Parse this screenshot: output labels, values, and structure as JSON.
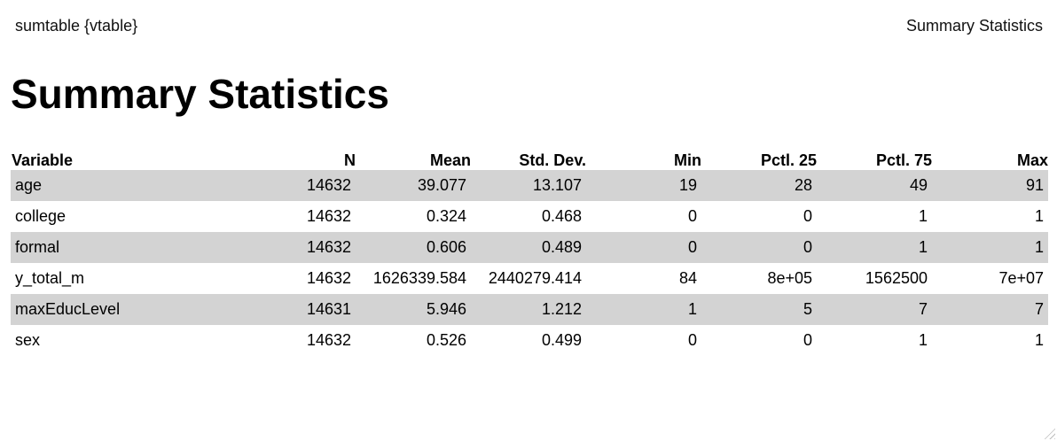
{
  "header": {
    "left": "sumtable {vtable}",
    "right": "Summary Statistics"
  },
  "title": "Summary Statistics",
  "table": {
    "columns": [
      "Variable",
      "N",
      "Mean",
      "Std. Dev.",
      "Min",
      "Pctl. 25",
      "Pctl. 75",
      "Max"
    ],
    "rows": [
      [
        "age",
        "14632",
        "39.077",
        "13.107",
        "19",
        "28",
        "49",
        "91"
      ],
      [
        "college",
        "14632",
        "0.324",
        "0.468",
        "0",
        "0",
        "1",
        "1"
      ],
      [
        "formal",
        "14632",
        "0.606",
        "0.489",
        "0",
        "0",
        "1",
        "1"
      ],
      [
        "y_total_m",
        "14632",
        "1626339.584",
        "2440279.414",
        "84",
        "8e+05",
        "1562500",
        "7e+07"
      ],
      [
        "maxEducLevel",
        "14631",
        "5.946",
        "1.212",
        "1",
        "5",
        "7",
        "7"
      ],
      [
        "sex",
        "14632",
        "0.526",
        "0.499",
        "0",
        "0",
        "1",
        "1"
      ]
    ]
  },
  "colors": {
    "stripe": "#d3d3d3",
    "background": "#ffffff"
  }
}
